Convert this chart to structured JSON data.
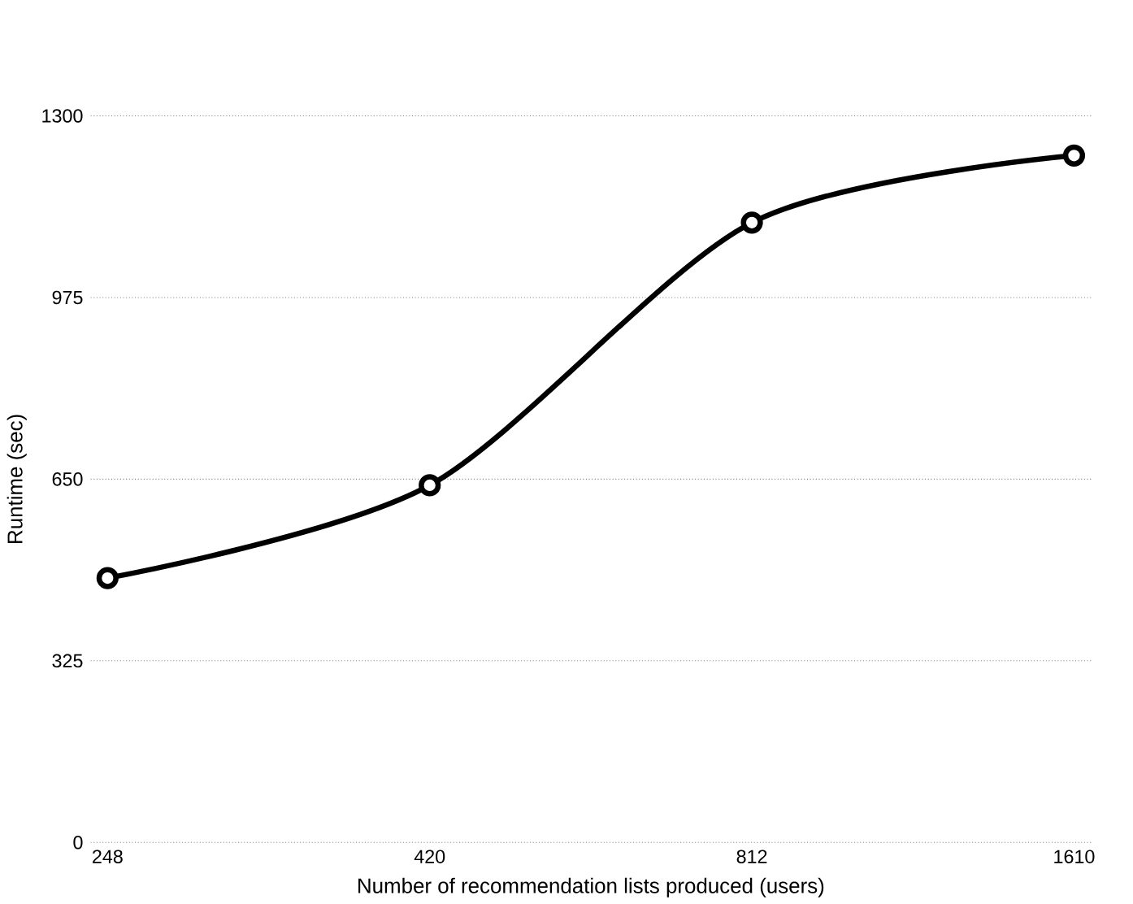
{
  "chart_data": {
    "type": "line",
    "xlabel": "Number of recommendation lists produced (users)",
    "ylabel": "Runtime (sec)",
    "categories": [
      "248",
      "420",
      "812",
      "1610"
    ],
    "series": [
      {
        "color": "#000000",
        "values": [
          473,
          639,
          1109,
          1229
        ]
      }
    ],
    "ylim": [
      0,
      1300
    ],
    "yticks": [
      0,
      325,
      650,
      975,
      1300
    ],
    "grid": "y",
    "marker": "circle",
    "line_style": "solid"
  }
}
